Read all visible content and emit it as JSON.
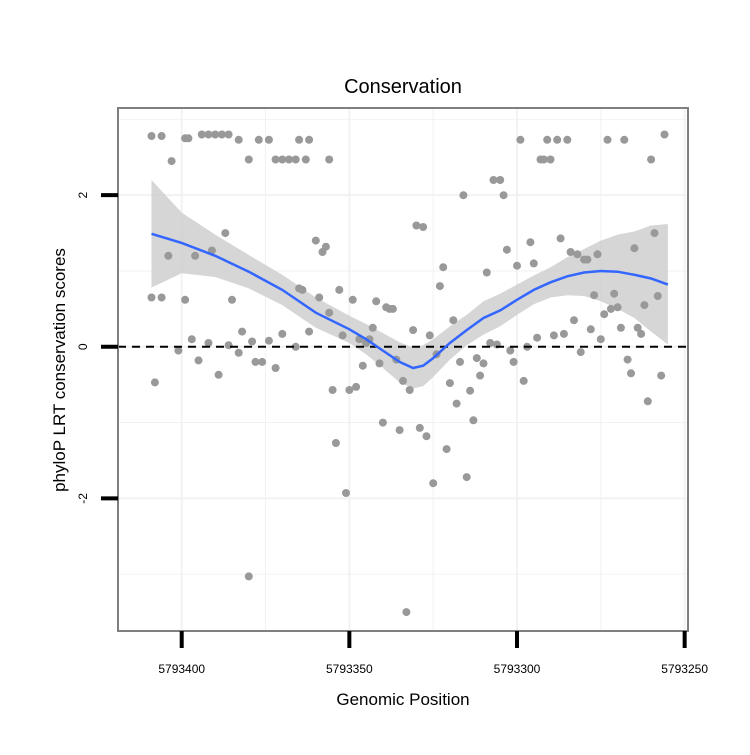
{
  "chart_data": {
    "type": "scatter",
    "title": "Conservation",
    "xlabel": "Genomic Position",
    "ylabel": "phyloP LRT conservation scores",
    "x_reversed": true,
    "xlim": [
      5793419,
      5793249
    ],
    "ylim": [
      -3.75,
      3.15
    ],
    "x_ticks": [
      {
        "value": 5793400,
        "label": "5793400"
      },
      {
        "value": 5793350,
        "label": "5793350"
      },
      {
        "value": 5793300,
        "label": "5793300"
      },
      {
        "value": 5793250,
        "label": "5793250"
      }
    ],
    "y_ticks": [
      {
        "value": 2,
        "label": "2"
      },
      {
        "value": 0,
        "label": "0"
      },
      {
        "value": -2,
        "label": "-2"
      }
    ],
    "grid": true,
    "reference_line": {
      "y": 0,
      "style": "dashed"
    },
    "colors": {
      "points": "#999999",
      "smooth_line": "#3366FF",
      "confidence_band": "#cccccc",
      "panel_border": "#7f7f7f",
      "grid": "#f2f2f2"
    },
    "series": [
      {
        "name": "phyloP scores",
        "points": [
          [
            5793409,
            2.78
          ],
          [
            5793406,
            2.78
          ],
          [
            5793403,
            2.45
          ],
          [
            5793399,
            2.75
          ],
          [
            5793398,
            2.75
          ],
          [
            5793394,
            2.8
          ],
          [
            5793392,
            2.8
          ],
          [
            5793390,
            2.8
          ],
          [
            5793388,
            2.8
          ],
          [
            5793386,
            2.8
          ],
          [
            5793383,
            2.73
          ],
          [
            5793380,
            2.47
          ],
          [
            5793377,
            2.73
          ],
          [
            5793374,
            2.73
          ],
          [
            5793372,
            2.47
          ],
          [
            5793370,
            2.47
          ],
          [
            5793368,
            2.47
          ],
          [
            5793366,
            2.47
          ],
          [
            5793365,
            2.73
          ],
          [
            5793363,
            2.47
          ],
          [
            5793362,
            2.73
          ],
          [
            5793356,
            2.47
          ],
          [
            5793409,
            0.65
          ],
          [
            5793408,
            -0.47
          ],
          [
            5793406,
            0.65
          ],
          [
            5793404,
            1.2
          ],
          [
            5793401,
            -0.05
          ],
          [
            5793399,
            0.62
          ],
          [
            5793397,
            0.1
          ],
          [
            5793396,
            1.2
          ],
          [
            5793395,
            -0.18
          ],
          [
            5793392,
            0.05
          ],
          [
            5793391,
            1.27
          ],
          [
            5793389,
            -0.37
          ],
          [
            5793387,
            1.5
          ],
          [
            5793386,
            0.02
          ],
          [
            5793385,
            0.62
          ],
          [
            5793383,
            -0.08
          ],
          [
            5793382,
            0.2
          ],
          [
            5793380,
            -3.03
          ],
          [
            5793379,
            0.07
          ],
          [
            5793378,
            -0.2
          ],
          [
            5793376,
            -0.2
          ],
          [
            5793374,
            0.08
          ],
          [
            5793372,
            -0.28
          ],
          [
            5793370,
            0.17
          ],
          [
            5793366,
            0.0
          ],
          [
            5793365,
            0.77
          ],
          [
            5793364,
            0.75
          ],
          [
            5793362,
            0.2
          ],
          [
            5793360,
            1.4
          ],
          [
            5793359,
            0.65
          ],
          [
            5793358,
            1.25
          ],
          [
            5793357,
            1.32
          ],
          [
            5793356,
            0.45
          ],
          [
            5793355,
            -0.57
          ],
          [
            5793354,
            -1.27
          ],
          [
            5793353,
            0.75
          ],
          [
            5793352,
            0.15
          ],
          [
            5793351,
            -1.93
          ],
          [
            5793350,
            -0.57
          ],
          [
            5793349,
            0.62
          ],
          [
            5793348,
            -0.53
          ],
          [
            5793347,
            0.1
          ],
          [
            5793346,
            -0.25
          ],
          [
            5793345,
            0.05
          ],
          [
            5793344,
            0.1
          ],
          [
            5793343,
            0.25
          ],
          [
            5793342,
            0.6
          ],
          [
            5793341,
            -0.22
          ],
          [
            5793340,
            -1.0
          ],
          [
            5793339,
            0.52
          ],
          [
            5793338,
            0.5
          ],
          [
            5793337,
            0.5
          ],
          [
            5793336,
            -0.17
          ],
          [
            5793335,
            -1.1
          ],
          [
            5793334,
            -0.45
          ],
          [
            5793333,
            -3.5
          ],
          [
            5793332,
            -0.57
          ],
          [
            5793331,
            0.22
          ],
          [
            5793330,
            1.6
          ],
          [
            5793329,
            -1.07
          ],
          [
            5793328,
            1.58
          ],
          [
            5793327,
            -1.18
          ],
          [
            5793326,
            0.15
          ],
          [
            5793325,
            -1.8
          ],
          [
            5793324,
            -0.1
          ],
          [
            5793323,
            0.8
          ],
          [
            5793322,
            1.05
          ],
          [
            5793321,
            -1.35
          ],
          [
            5793320,
            -0.48
          ],
          [
            5793319,
            0.35
          ],
          [
            5793318,
            -0.75
          ],
          [
            5793317,
            -0.2
          ],
          [
            5793316,
            2.0
          ],
          [
            5793315,
            -1.72
          ],
          [
            5793314,
            -0.58
          ],
          [
            5793313,
            -0.97
          ],
          [
            5793312,
            -0.15
          ],
          [
            5793311,
            -0.38
          ],
          [
            5793310,
            -0.22
          ],
          [
            5793309,
            0.98
          ],
          [
            5793308,
            0.05
          ],
          [
            5793307,
            2.2
          ],
          [
            5793306,
            0.03
          ],
          [
            5793305,
            2.2
          ],
          [
            5793304,
            2.0
          ],
          [
            5793303,
            1.28
          ],
          [
            5793302,
            -0.05
          ],
          [
            5793301,
            -0.2
          ],
          [
            5793300,
            1.07
          ],
          [
            5793299,
            2.73
          ],
          [
            5793298,
            -0.45
          ],
          [
            5793297,
            0.0
          ],
          [
            5793296,
            1.38
          ],
          [
            5793295,
            1.1
          ],
          [
            5793294,
            0.12
          ],
          [
            5793293,
            2.47
          ],
          [
            5793292,
            2.47
          ],
          [
            5793291,
            2.73
          ],
          [
            5793290,
            2.47
          ],
          [
            5793289,
            0.15
          ],
          [
            5793288,
            2.73
          ],
          [
            5793287,
            1.43
          ],
          [
            5793286,
            0.17
          ],
          [
            5793285,
            2.73
          ],
          [
            5793284,
            1.25
          ],
          [
            5793283,
            0.35
          ],
          [
            5793282,
            1.22
          ],
          [
            5793281,
            -0.07
          ],
          [
            5793280,
            1.15
          ],
          [
            5793279,
            1.15
          ],
          [
            5793278,
            0.23
          ],
          [
            5793277,
            0.68
          ],
          [
            5793276,
            1.22
          ],
          [
            5793275,
            0.1
          ],
          [
            5793274,
            0.43
          ],
          [
            5793273,
            2.73
          ],
          [
            5793272,
            0.5
          ],
          [
            5793271,
            0.7
          ],
          [
            5793270,
            0.52
          ],
          [
            5793269,
            0.25
          ],
          [
            5793268,
            2.73
          ],
          [
            5793267,
            -0.17
          ],
          [
            5793266,
            -0.35
          ],
          [
            5793265,
            1.3
          ],
          [
            5793264,
            0.25
          ],
          [
            5793263,
            0.17
          ],
          [
            5793262,
            0.55
          ],
          [
            5793261,
            -0.72
          ],
          [
            5793260,
            2.47
          ],
          [
            5793259,
            1.5
          ],
          [
            5793258,
            0.67
          ],
          [
            5793257,
            -0.38
          ],
          [
            5793256,
            2.8
          ]
        ]
      }
    ],
    "smooth": {
      "name": "loess fit",
      "points": [
        [
          5793409,
          1.49
        ],
        [
          5793400,
          1.37
        ],
        [
          5793390,
          1.2
        ],
        [
          5793380,
          0.99
        ],
        [
          5793370,
          0.75
        ],
        [
          5793360,
          0.45
        ],
        [
          5793350,
          0.23
        ],
        [
          5793345,
          0.1
        ],
        [
          5793340,
          -0.05
        ],
        [
          5793335,
          -0.2
        ],
        [
          5793331,
          -0.28
        ],
        [
          5793328,
          -0.25
        ],
        [
          5793325,
          -0.15
        ],
        [
          5793320,
          0.05
        ],
        [
          5793315,
          0.22
        ],
        [
          5793310,
          0.38
        ],
        [
          5793305,
          0.48
        ],
        [
          5793300,
          0.62
        ],
        [
          5793295,
          0.75
        ],
        [
          5793290,
          0.85
        ],
        [
          5793285,
          0.93
        ],
        [
          5793280,
          0.98
        ],
        [
          5793275,
          1.0
        ],
        [
          5793270,
          0.99
        ],
        [
          5793265,
          0.95
        ],
        [
          5793260,
          0.9
        ],
        [
          5793255,
          0.82
        ]
      ],
      "lower": [
        [
          5793409,
          0.78
        ],
        [
          5793400,
          0.97
        ],
        [
          5793390,
          0.92
        ],
        [
          5793380,
          0.77
        ],
        [
          5793370,
          0.55
        ],
        [
          5793360,
          0.25
        ],
        [
          5793350,
          0.05
        ],
        [
          5793345,
          -0.1
        ],
        [
          5793340,
          -0.28
        ],
        [
          5793335,
          -0.47
        ],
        [
          5793331,
          -0.55
        ],
        [
          5793328,
          -0.52
        ],
        [
          5793325,
          -0.4
        ],
        [
          5793320,
          -0.17
        ],
        [
          5793315,
          0.02
        ],
        [
          5793310,
          0.16
        ],
        [
          5793305,
          0.27
        ],
        [
          5793300,
          0.42
        ],
        [
          5793295,
          0.56
        ],
        [
          5793290,
          0.65
        ],
        [
          5793285,
          0.68
        ],
        [
          5793280,
          0.67
        ],
        [
          5793275,
          0.6
        ],
        [
          5793270,
          0.5
        ],
        [
          5793265,
          0.38
        ],
        [
          5793260,
          0.2
        ],
        [
          5793255,
          0.03
        ]
      ],
      "upper": [
        [
          5793409,
          2.2
        ],
        [
          5793400,
          1.77
        ],
        [
          5793390,
          1.48
        ],
        [
          5793380,
          1.21
        ],
        [
          5793370,
          0.95
        ],
        [
          5793360,
          0.65
        ],
        [
          5793350,
          0.41
        ],
        [
          5793345,
          0.3
        ],
        [
          5793340,
          0.18
        ],
        [
          5793335,
          0.06
        ],
        [
          5793331,
          -0.01
        ],
        [
          5793328,
          0.02
        ],
        [
          5793325,
          0.1
        ],
        [
          5793320,
          0.27
        ],
        [
          5793315,
          0.42
        ],
        [
          5793310,
          0.6
        ],
        [
          5793305,
          0.7
        ],
        [
          5793300,
          0.82
        ],
        [
          5793295,
          0.94
        ],
        [
          5793290,
          1.05
        ],
        [
          5793285,
          1.18
        ],
        [
          5793280,
          1.29
        ],
        [
          5793275,
          1.4
        ],
        [
          5793270,
          1.48
        ],
        [
          5793265,
          1.52
        ],
        [
          5793260,
          1.6
        ],
        [
          5793255,
          1.62
        ]
      ]
    }
  }
}
